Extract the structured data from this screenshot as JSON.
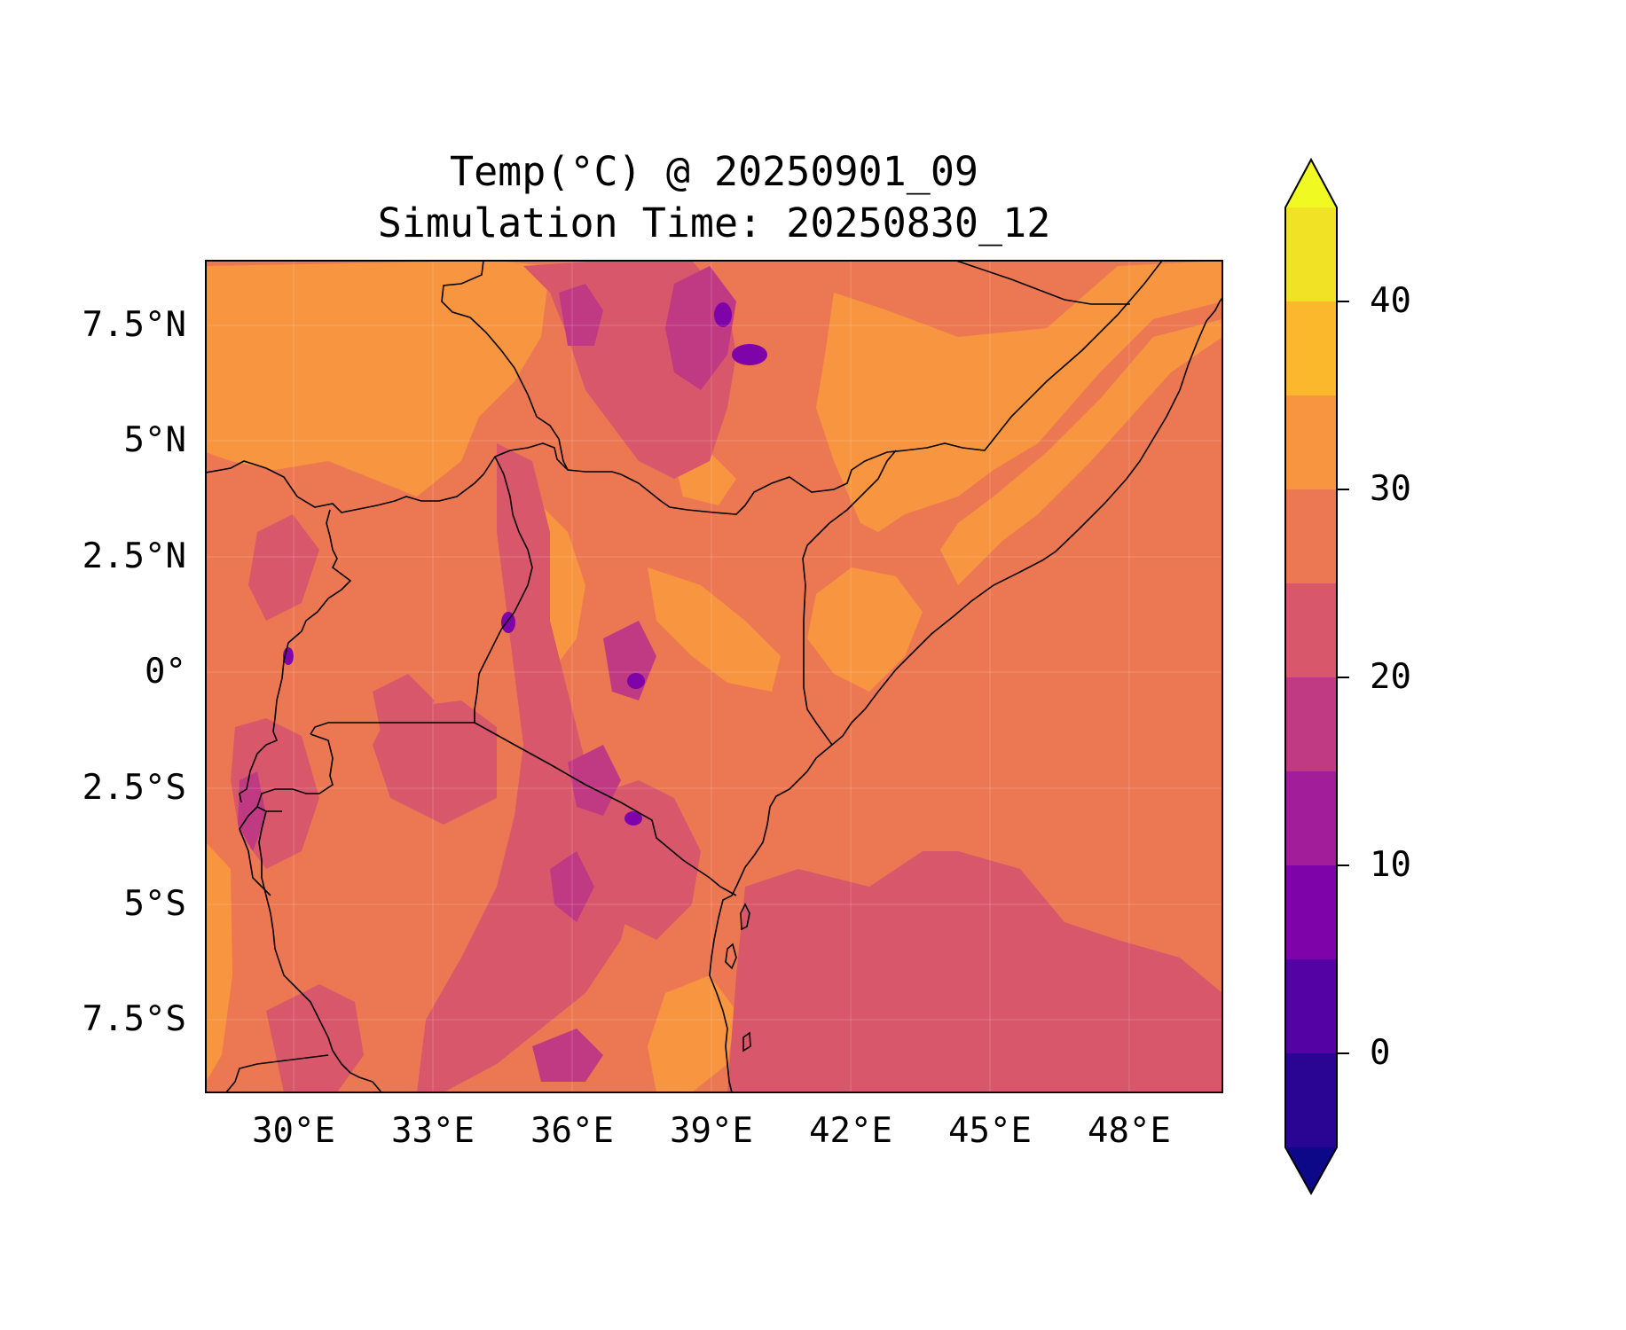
{
  "title": {
    "line1": "Temp(°C) @ 20250901_09",
    "line2": "Simulation Time: 20250830_12"
  },
  "map": {
    "lon_range": [
      27.0,
      50.8
    ],
    "lat_range": [
      -9.2,
      8.8
    ],
    "x_ticks": [
      "30°E",
      "33°E",
      "36°E",
      "39°E",
      "42°E",
      "45°E",
      "48°E"
    ],
    "y_ticks": [
      "7.5°N",
      "5°N",
      "2.5°N",
      "0°",
      "2.5°S",
      "5°S",
      "7.5°S"
    ],
    "grid": true,
    "field": "near-surface temperature (°C) over East Africa",
    "dominant_ranges": {
      "sahel_and_lowlands": "30-35",
      "highlands": "15-25",
      "indian_ocean": "20-30"
    }
  },
  "colorbar": {
    "colormap": "plasma",
    "extend": "both",
    "levels": [
      -5,
      0,
      5,
      10,
      15,
      20,
      25,
      30,
      35,
      40,
      45
    ],
    "tick_labels": [
      "0",
      "10",
      "20",
      "30",
      "40"
    ],
    "colors": [
      "#0d0887",
      "#2a0593",
      "#5402a3",
      "#7e03a8",
      "#a21d9a",
      "#c03a83",
      "#d8576b",
      "#ec7853",
      "#f89540",
      "#fbb82d",
      "#f2e225",
      "#f0f921"
    ]
  }
}
